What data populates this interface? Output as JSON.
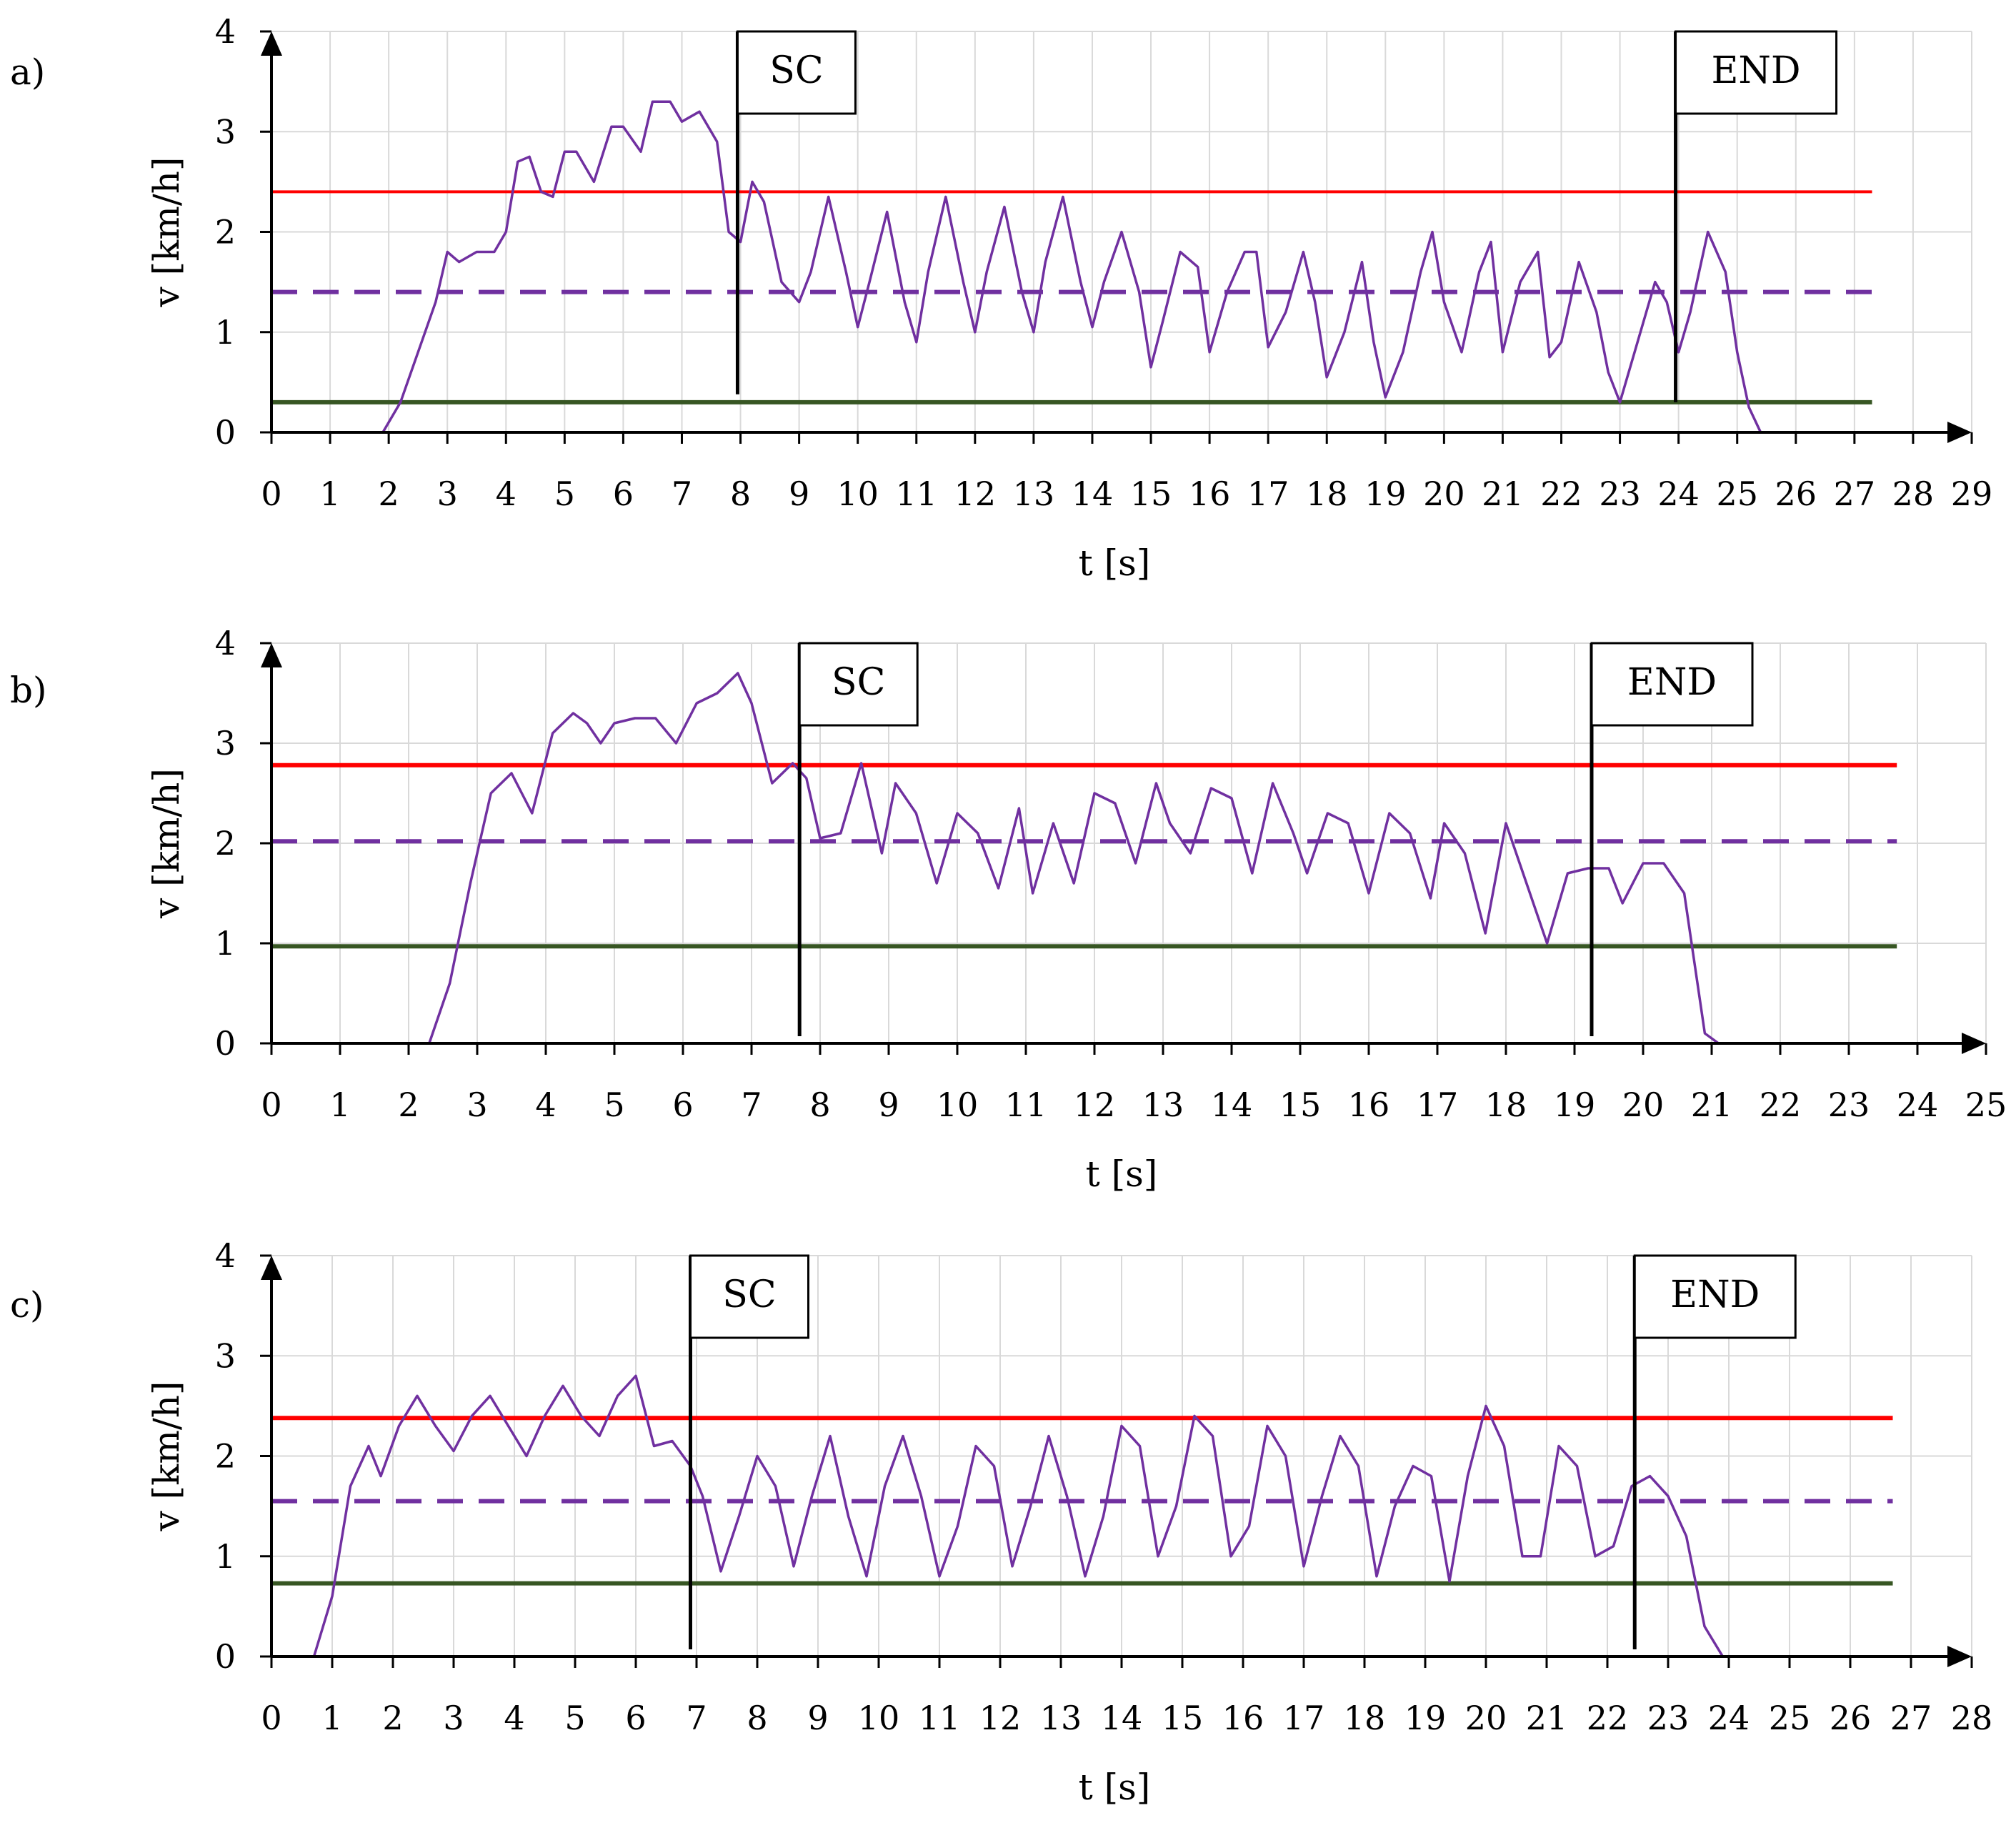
{
  "colors": {
    "speed": "#7030a0",
    "upper": "#ff0000",
    "mean": "#7030a0",
    "lower": "#375623",
    "grid": "#d9d9d9",
    "axis": "#000000"
  },
  "chart_data": [
    {
      "type": "line",
      "label": "a)",
      "xlabel": "t [s]",
      "ylabel": "v [km/h]",
      "xlim": [
        0,
        29
      ],
      "ylim": [
        0,
        4
      ],
      "xticks": [
        0,
        1,
        2,
        3,
        4,
        5,
        6,
        7,
        8,
        9,
        10,
        11,
        12,
        13,
        14,
        15,
        16,
        17,
        18,
        19,
        20,
        21,
        22,
        23,
        24,
        25,
        26,
        27,
        28,
        29
      ],
      "yticks": [
        0,
        1,
        2,
        3,
        4
      ],
      "grid": true,
      "upper_line": 2.4,
      "mean_line": 1.4,
      "lower_line": 0.3,
      "ref_line_end": 27.3,
      "markers": [
        {
          "label": "SC",
          "t": 7.95
        },
        {
          "label": "END",
          "t": 23.95
        }
      ],
      "series": [
        {
          "name": "speed",
          "t": [
            0,
            1.9,
            2.2,
            2.5,
            2.8,
            3.0,
            3.2,
            3.5,
            3.8,
            4.0,
            4.2,
            4.4,
            4.6,
            4.8,
            5.0,
            5.2,
            5.5,
            5.8,
            6.0,
            6.3,
            6.5,
            6.8,
            7.0,
            7.3,
            7.6,
            7.8,
            8.0,
            8.2,
            8.4,
            8.7,
            9.0,
            9.2,
            9.5,
            9.8,
            10.0,
            10.2,
            10.5,
            10.8,
            11.0,
            11.2,
            11.5,
            11.8,
            12.0,
            12.2,
            12.5,
            12.8,
            13.0,
            13.2,
            13.5,
            13.8,
            14.0,
            14.2,
            14.5,
            14.8,
            15.0,
            15.2,
            15.5,
            15.8,
            16.0,
            16.3,
            16.6,
            16.8,
            17.0,
            17.3,
            17.6,
            17.8,
            18.0,
            18.3,
            18.6,
            18.8,
            19.0,
            19.3,
            19.6,
            19.8,
            20.0,
            20.3,
            20.6,
            20.8,
            21.0,
            21.3,
            21.6,
            21.8,
            22.0,
            22.3,
            22.6,
            22.8,
            23.0,
            23.3,
            23.6,
            23.8,
            24.0,
            24.2,
            24.5,
            24.8,
            25.0,
            25.2,
            25.4,
            25.6,
            25.8,
            26.0,
            27.3
          ],
          "v": [
            0,
            0,
            0.3,
            0.8,
            1.3,
            1.8,
            1.7,
            1.8,
            1.8,
            2.0,
            2.7,
            2.75,
            2.4,
            2.35,
            2.8,
            2.8,
            2.5,
            3.05,
            3.05,
            2.8,
            3.3,
            3.3,
            3.1,
            3.2,
            2.9,
            2.0,
            1.9,
            2.5,
            2.3,
            1.5,
            1.3,
            1.6,
            2.35,
            1.6,
            1.05,
            1.5,
            2.2,
            1.3,
            0.9,
            1.6,
            2.35,
            1.5,
            1.0,
            1.6,
            2.25,
            1.4,
            1.0,
            1.7,
            2.35,
            1.5,
            1.05,
            1.5,
            2.0,
            1.4,
            0.65,
            1.1,
            1.8,
            1.65,
            0.8,
            1.4,
            1.8,
            1.8,
            0.85,
            1.2,
            1.8,
            1.3,
            0.55,
            1.0,
            1.7,
            0.9,
            0.35,
            0.8,
            1.6,
            2.0,
            1.3,
            0.8,
            1.6,
            1.9,
            0.8,
            1.5,
            1.8,
            0.75,
            0.9,
            1.7,
            1.2,
            0.6,
            0.3,
            0.9,
            1.5,
            1.3,
            0.8,
            1.2,
            2.0,
            1.6,
            0.8,
            0.25,
            0.0,
            0.0,
            0.0,
            0.0,
            0.0
          ]
        }
      ]
    },
    {
      "type": "line",
      "label": "b)",
      "xlabel": "t [s]",
      "ylabel": "v [km/h]",
      "xlim": [
        0,
        25
      ],
      "ylim": [
        0,
        4
      ],
      "xticks": [
        0,
        1,
        2,
        3,
        4,
        5,
        6,
        7,
        8,
        9,
        10,
        11,
        12,
        13,
        14,
        15,
        16,
        17,
        18,
        19,
        20,
        21,
        22,
        23,
        24,
        25
      ],
      "yticks": [
        0,
        1,
        2,
        3,
        4
      ],
      "grid": true,
      "upper_line": 2.78,
      "mean_line": 2.02,
      "lower_line": 0.97,
      "ref_line_end": 23.7,
      "markers": [
        {
          "label": "SC",
          "t": 7.7
        },
        {
          "label": "END",
          "t": 19.25
        }
      ],
      "series": [
        {
          "name": "speed",
          "t": [
            0,
            2.3,
            2.6,
            2.9,
            3.2,
            3.5,
            3.8,
            4.1,
            4.4,
            4.6,
            4.8,
            5.0,
            5.3,
            5.6,
            5.9,
            6.2,
            6.5,
            6.8,
            7.0,
            7.3,
            7.6,
            7.8,
            8.0,
            8.3,
            8.6,
            8.9,
            9.1,
            9.4,
            9.7,
            10.0,
            10.3,
            10.6,
            10.9,
            11.1,
            11.4,
            11.7,
            12.0,
            12.3,
            12.6,
            12.9,
            13.1,
            13.4,
            13.7,
            14.0,
            14.3,
            14.6,
            14.9,
            15.1,
            15.4,
            15.7,
            16.0,
            16.3,
            16.6,
            16.9,
            17.1,
            17.4,
            17.7,
            18.0,
            18.3,
            18.6,
            18.9,
            19.2,
            19.5,
            19.7,
            20.0,
            20.3,
            20.6,
            20.9,
            21.1,
            21.4,
            23.7
          ],
          "v": [
            0,
            0.0,
            0.6,
            1.6,
            2.5,
            2.7,
            2.3,
            3.1,
            3.3,
            3.2,
            3.0,
            3.2,
            3.25,
            3.25,
            3.0,
            3.4,
            3.5,
            3.7,
            3.4,
            2.6,
            2.8,
            2.65,
            2.05,
            2.1,
            2.8,
            1.9,
            2.6,
            2.3,
            1.6,
            2.3,
            2.1,
            1.55,
            2.35,
            1.5,
            2.2,
            1.6,
            2.5,
            2.4,
            1.8,
            2.6,
            2.2,
            1.9,
            2.55,
            2.45,
            1.7,
            2.6,
            2.1,
            1.7,
            2.3,
            2.2,
            1.5,
            2.3,
            2.1,
            1.45,
            2.2,
            1.9,
            1.1,
            2.2,
            1.6,
            1.0,
            1.7,
            1.75,
            1.75,
            1.4,
            1.8,
            1.8,
            1.5,
            0.1,
            0.0,
            0.0,
            0.0
          ]
        }
      ]
    },
    {
      "type": "line",
      "label": "c)",
      "xlabel": "t [s]",
      "ylabel": "v [km/h]",
      "xlim": [
        0,
        28
      ],
      "ylim": [
        0,
        4
      ],
      "xticks": [
        0,
        1,
        2,
        3,
        4,
        5,
        6,
        7,
        8,
        9,
        10,
        11,
        12,
        13,
        14,
        15,
        16,
        17,
        18,
        19,
        20,
        21,
        22,
        23,
        24,
        25,
        26,
        27,
        28
      ],
      "yticks": [
        0,
        1,
        2,
        3,
        4
      ],
      "grid": true,
      "upper_line": 2.38,
      "mean_line": 1.55,
      "lower_line": 0.73,
      "ref_line_end": 26.7,
      "markers": [
        {
          "label": "SC",
          "t": 6.9
        },
        {
          "label": "END",
          "t": 22.45
        }
      ],
      "series": [
        {
          "name": "speed",
          "t": [
            0,
            0.7,
            1.0,
            1.3,
            1.6,
            1.8,
            2.1,
            2.4,
            2.7,
            3.0,
            3.3,
            3.6,
            3.9,
            4.2,
            4.5,
            4.8,
            5.1,
            5.4,
            5.7,
            6.0,
            6.3,
            6.6,
            6.9,
            7.1,
            7.4,
            7.7,
            8.0,
            8.3,
            8.6,
            8.9,
            9.2,
            9.5,
            9.8,
            10.1,
            10.4,
            10.7,
            11.0,
            11.3,
            11.6,
            11.9,
            12.2,
            12.5,
            12.8,
            13.1,
            13.4,
            13.7,
            14.0,
            14.3,
            14.6,
            14.9,
            15.2,
            15.5,
            15.8,
            16.1,
            16.4,
            16.7,
            17.0,
            17.3,
            17.6,
            17.9,
            18.2,
            18.5,
            18.8,
            19.1,
            19.4,
            19.7,
            20.0,
            20.3,
            20.6,
            20.9,
            21.2,
            21.5,
            21.8,
            22.1,
            22.4,
            22.7,
            23.0,
            23.3,
            23.6,
            23.9,
            24.2,
            26.7
          ],
          "v": [
            0,
            0.0,
            0.6,
            1.7,
            2.1,
            1.8,
            2.3,
            2.6,
            2.3,
            2.05,
            2.4,
            2.6,
            2.3,
            2.0,
            2.4,
            2.7,
            2.4,
            2.2,
            2.6,
            2.8,
            2.1,
            2.15,
            1.9,
            1.6,
            0.85,
            1.4,
            2.0,
            1.7,
            0.9,
            1.6,
            2.2,
            1.4,
            0.8,
            1.7,
            2.2,
            1.6,
            0.8,
            1.3,
            2.1,
            1.9,
            0.9,
            1.5,
            2.2,
            1.6,
            0.8,
            1.4,
            2.3,
            2.1,
            1.0,
            1.5,
            2.4,
            2.2,
            1.0,
            1.3,
            2.3,
            2.0,
            0.9,
            1.6,
            2.2,
            1.9,
            0.8,
            1.5,
            1.9,
            1.8,
            0.75,
            1.8,
            2.5,
            2.1,
            1.0,
            1.0,
            2.1,
            1.9,
            1.0,
            1.1,
            1.7,
            1.8,
            1.6,
            1.2,
            0.3,
            0.0,
            0.0,
            0.0
          ]
        }
      ]
    }
  ]
}
